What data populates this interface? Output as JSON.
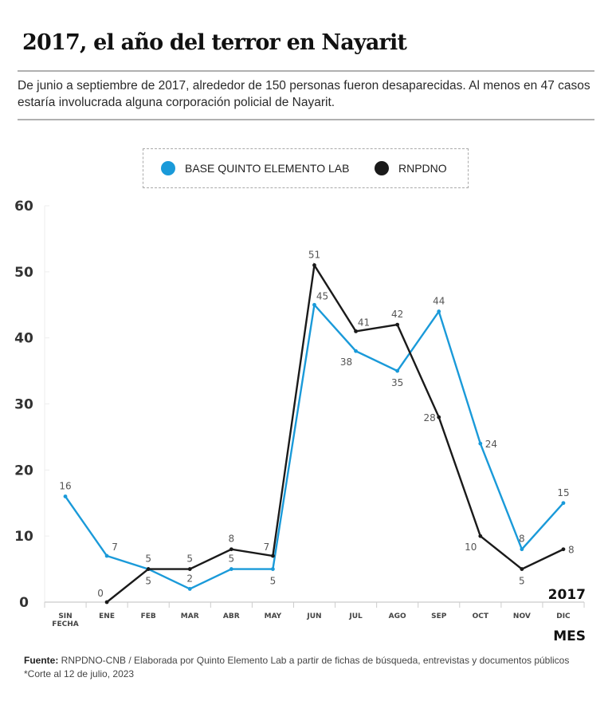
{
  "header": {
    "title": "2017, el año del terror en Nayarit",
    "subtitle": "De junio a septiembre de 2017, alrededor de 150 personas fueron desaparecidas. Al menos en 47 casos estaría involucrada alguna corporación policial de Nayarit."
  },
  "footer": {
    "source_label": "Fuente:",
    "source_text": " RNPDNO-CNB / Elaborada por Quinto Elemento Lab a partir de fichas de búsqueda, entrevistas y documentos públicos",
    "note": "*Corte al 12 de julio, 2023"
  },
  "colors": {
    "quinto": "#1a9ad9",
    "rnpdno": "#1a1a1a",
    "label": "#555555",
    "axis": "#cccccc"
  },
  "chart_data": {
    "type": "line",
    "title": "2017, el año del terror en Nayarit",
    "xlabel": "MES",
    "year_label": "2017",
    "ylabel": "",
    "ylim": [
      0,
      60
    ],
    "yticks": [
      0,
      10,
      20,
      30,
      40,
      50,
      60
    ],
    "grid": false,
    "legend_position": "top-center",
    "categories": [
      "SIN FECHA",
      "ENE",
      "FEB",
      "MAR",
      "ABR",
      "MAY",
      "JUN",
      "JUL",
      "AGO",
      "SEP",
      "OCT",
      "NOV",
      "DIC"
    ],
    "series": [
      {
        "name": "BASE QUINTO ELEMENTO LAB",
        "color": "#1a9ad9",
        "values": [
          16,
          7,
          5,
          2,
          5,
          5,
          45,
          38,
          35,
          44,
          24,
          8,
          15
        ],
        "label_pos": [
          "above",
          "above-right",
          "below",
          "above",
          "above",
          "below",
          "above-right",
          "below-left",
          "below",
          "above",
          "right",
          "above",
          "above"
        ]
      },
      {
        "name": "RNPDNO",
        "color": "#1a1a1a",
        "values": [
          null,
          0,
          5,
          5,
          8,
          7,
          51,
          41,
          42,
          28,
          10,
          5,
          8
        ],
        "label_pos": [
          null,
          "above-left",
          "above",
          "above",
          "above",
          "above-left",
          "above",
          "above-right",
          "above",
          "left",
          "below-left",
          "below",
          "right"
        ]
      }
    ]
  }
}
